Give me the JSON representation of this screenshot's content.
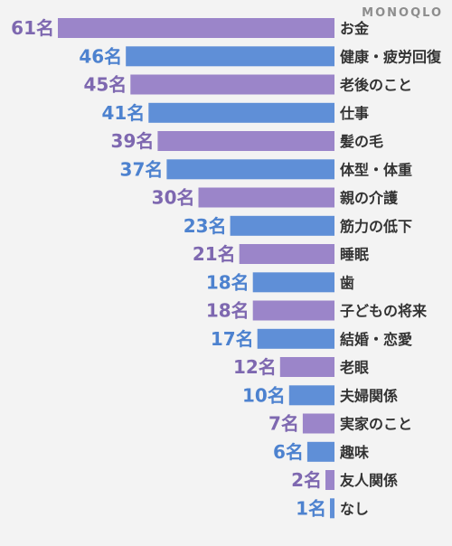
{
  "brand": {
    "watermark": "MONOQLO"
  },
  "colors": {
    "background": "#f3f3f3",
    "purple": "#9b85c9",
    "blue": "#5f8fd7",
    "text": "#333333",
    "valuePurple": "#7e68b0",
    "valueBlue": "#4d82cf"
  },
  "chart_data": {
    "type": "bar",
    "orientation": "horizontal",
    "unit": "名",
    "categories": [
      "お金",
      "健康・疲労回復",
      "老後のこと",
      "仕事",
      "髪の毛",
      "体型・体重",
      "親の介護",
      "筋力の低下",
      "睡眠",
      "歯",
      "子どもの将来",
      "結婚・恋愛",
      "老眼",
      "夫婦関係",
      "実家のこと",
      "趣味",
      "友人関係",
      "なし"
    ],
    "values": [
      61,
      46,
      45,
      41,
      39,
      37,
      30,
      23,
      21,
      18,
      18,
      17,
      12,
      10,
      7,
      6,
      2,
      1
    ],
    "value_labels": [
      "61名",
      "46名",
      "45名",
      "41名",
      "39名",
      "37名",
      "30名",
      "23名",
      "21名",
      "18名",
      "18名",
      "17名",
      "12名",
      "10名",
      "7名",
      "6名",
      "2名",
      "1名"
    ],
    "bar_colors": [
      "purple",
      "blue",
      "purple",
      "blue",
      "purple",
      "blue",
      "purple",
      "blue",
      "purple",
      "blue",
      "purple",
      "blue",
      "purple",
      "blue",
      "purple",
      "blue",
      "purple",
      "blue"
    ],
    "xlim": [
      0,
      61
    ],
    "title": "",
    "xlabel": "",
    "ylabel": "",
    "grid": false,
    "legend": false
  }
}
